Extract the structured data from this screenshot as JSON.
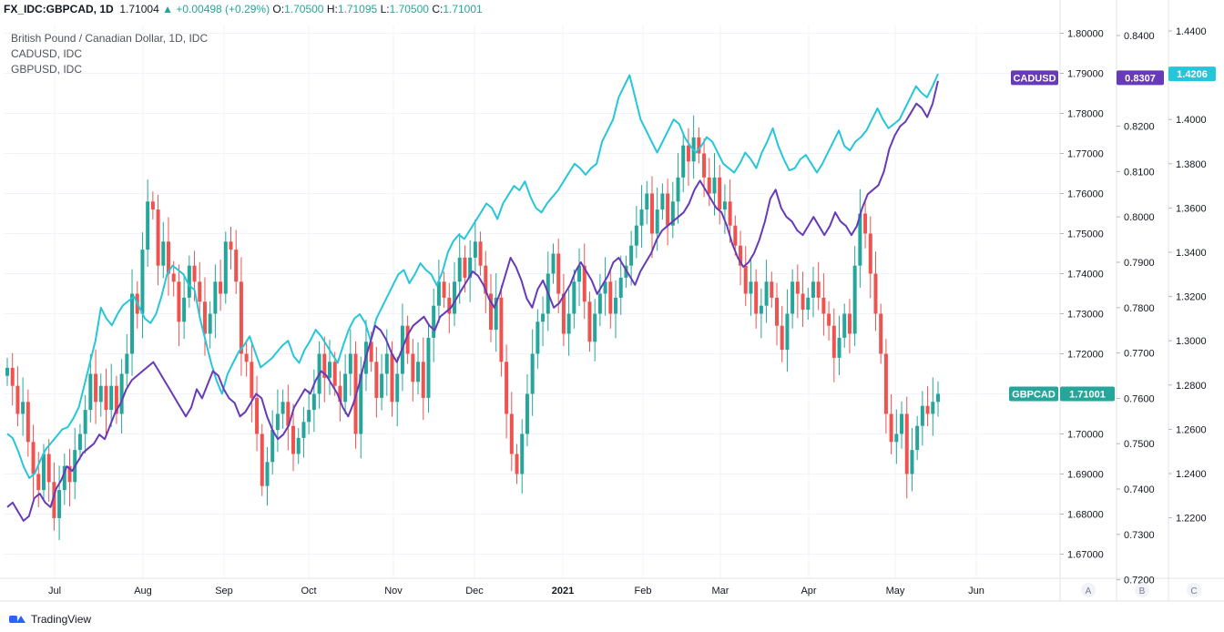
{
  "header": {
    "symbol": "FX_IDC:GBPCAD, 1D",
    "last": "1.71004",
    "change": "+0.00498 (+0.29%)",
    "o_label": "O:",
    "o_value": "1.70500",
    "h_label": "H:",
    "h_value": "1.71095",
    "l_label": "L:",
    "l_value": "1.70500",
    "c_label": "C:",
    "c_value": "1.71001"
  },
  "legend": [
    "British Pound / Canadian Dollar, 1D, IDC",
    "CADUSD, IDC",
    "GBPUSD, IDC"
  ],
  "footer": {
    "brand": "TradingView"
  },
  "colors": {
    "up": "#26a69a",
    "down": "#ef5350",
    "cadusd": "#673ab7",
    "gbpusd": "#26c6da",
    "grid": "#f0f3fa",
    "axis_text": "#131722",
    "border": "#e0e3eb",
    "gbpcad_badge": "#26a69a"
  },
  "chart_data": {
    "type": "candlestick",
    "x_ticks": [
      "Jul",
      "Aug",
      "Sep",
      "Oct",
      "Nov",
      "Dec",
      "2021",
      "Feb",
      "Mar",
      "Apr",
      "May",
      "Jun"
    ],
    "scales": [
      {
        "id": "A",
        "series": "GBPCAD",
        "ticks": [
          "1.80000",
          "1.79000",
          "1.78000",
          "1.77000",
          "1.76000",
          "1.75000",
          "1.74000",
          "1.73000",
          "1.72000",
          "1.71000",
          "1.70000",
          "1.69000",
          "1.68000",
          "1.67000"
        ],
        "last_label": "GBPCAD",
        "last_value": "1.71001",
        "last": 1.71001
      },
      {
        "id": "B",
        "series": "CADUSD",
        "ticks": [
          "0.8400",
          "0.8300",
          "0.8200",
          "0.8100",
          "0.8000",
          "0.7900",
          "0.7800",
          "0.7700",
          "0.7600",
          "0.7500",
          "0.7400",
          "0.7300",
          "0.7200"
        ],
        "last_label": "CADUSD",
        "last_value": "0.8307",
        "last": 0.8307
      },
      {
        "id": "C",
        "series": "GBPUSD",
        "ticks": [
          "1.4400",
          "1.4200",
          "1.4000",
          "1.3800",
          "1.3600",
          "1.3400",
          "1.3200",
          "1.3000",
          "1.2800",
          "1.2600",
          "1.2400",
          "1.2200"
        ],
        "last_value": "1.4206",
        "last": 1.4206
      }
    ],
    "series": [
      {
        "name": "GBPCAD",
        "close": [
          1.7165,
          1.712,
          1.705,
          1.708,
          1.698,
          1.69,
          1.686,
          1.695,
          1.688,
          1.679,
          1.686,
          1.692,
          1.688,
          1.696,
          1.7,
          1.706,
          1.715,
          1.708,
          1.712,
          1.706,
          1.712,
          1.705,
          1.715,
          1.72,
          1.735,
          1.73,
          1.746,
          1.758,
          1.756,
          1.742,
          1.748,
          1.74,
          1.738,
          1.728,
          1.734,
          1.742,
          1.738,
          1.733,
          1.725,
          1.73,
          1.738,
          1.735,
          1.748,
          1.746,
          1.738,
          1.72,
          1.718,
          1.709,
          1.7,
          1.687,
          1.693,
          1.701,
          1.705,
          1.708,
          1.702,
          1.695,
          1.699,
          1.703,
          1.706,
          1.71,
          1.72,
          1.714,
          1.718,
          1.712,
          1.708,
          1.715,
          1.72,
          1.7,
          1.715,
          1.723,
          1.718,
          1.709,
          1.715,
          1.72,
          1.708,
          1.715,
          1.727,
          1.72,
          1.713,
          1.718,
          1.709,
          1.724,
          1.732,
          1.738,
          1.734,
          1.73,
          1.738,
          1.744,
          1.739,
          1.744,
          1.748,
          1.742,
          1.735,
          1.726,
          1.734,
          1.718,
          1.705,
          1.695,
          1.69,
          1.7,
          1.71,
          1.72,
          1.728,
          1.73,
          1.74,
          1.745,
          1.735,
          1.725,
          1.73,
          1.738,
          1.742,
          1.733,
          1.723,
          1.73,
          1.735,
          1.738,
          1.73,
          1.734,
          1.739,
          1.742,
          1.747,
          1.752,
          1.756,
          1.76,
          1.75,
          1.756,
          1.76,
          1.752,
          1.758,
          1.764,
          1.772,
          1.768,
          1.774,
          1.77,
          1.764,
          1.76,
          1.764,
          1.756,
          1.758,
          1.752,
          1.747,
          1.742,
          1.735,
          1.738,
          1.73,
          1.732,
          1.738,
          1.734,
          1.727,
          1.721,
          1.73,
          1.738,
          1.735,
          1.731,
          1.734,
          1.738,
          1.734,
          1.73,
          1.727,
          1.719,
          1.724,
          1.73,
          1.725,
          1.742,
          1.755,
          1.75,
          1.74,
          1.73,
          1.72,
          1.705,
          1.698,
          1.7,
          1.705,
          1.69,
          1.696,
          1.702,
          1.707,
          1.705,
          1.708,
          1.71
        ],
        "ohlc_note": "daily candles, Jun 2020 – May 2021"
      },
      {
        "name": "CADUSD",
        "close": [
          0.736,
          0.737,
          0.735,
          0.733,
          0.734,
          0.738,
          0.739,
          0.737,
          0.736,
          0.74,
          0.742,
          0.745,
          0.744,
          0.746,
          0.748,
          0.749,
          0.75,
          0.752,
          0.751,
          0.754,
          0.757,
          0.759,
          0.762,
          0.764,
          0.765,
          0.766,
          0.767,
          0.768,
          0.766,
          0.764,
          0.762,
          0.76,
          0.758,
          0.756,
          0.758,
          0.762,
          0.76,
          0.763,
          0.766,
          0.765,
          0.762,
          0.76,
          0.759,
          0.756,
          0.757,
          0.759,
          0.761,
          0.76,
          0.756,
          0.753,
          0.751,
          0.752,
          0.754,
          0.758,
          0.76,
          0.762,
          0.761,
          0.764,
          0.766,
          0.765,
          0.763,
          0.761,
          0.758,
          0.756,
          0.759,
          0.763,
          0.768,
          0.772,
          0.776,
          0.775,
          0.773,
          0.77,
          0.768,
          0.771,
          0.774,
          0.776,
          0.777,
          0.778,
          0.776,
          0.775,
          0.778,
          0.779,
          0.78,
          0.782,
          0.784,
          0.786,
          0.788,
          0.787,
          0.785,
          0.782,
          0.78,
          0.783,
          0.787,
          0.791,
          0.789,
          0.786,
          0.782,
          0.78,
          0.784,
          0.786,
          0.783,
          0.78,
          0.781,
          0.783,
          0.785,
          0.788,
          0.79,
          0.788,
          0.786,
          0.783,
          0.785,
          0.787,
          0.79,
          0.791,
          0.789,
          0.787,
          0.785,
          0.788,
          0.79,
          0.792,
          0.795,
          0.797,
          0.798,
          0.799,
          0.8,
          0.801,
          0.803,
          0.806,
          0.808,
          0.806,
          0.804,
          0.802,
          0.801,
          0.798,
          0.794,
          0.791,
          0.789,
          0.79,
          0.792,
          0.795,
          0.799,
          0.804,
          0.806,
          0.802,
          0.8,
          0.799,
          0.797,
          0.796,
          0.798,
          0.8,
          0.798,
          0.796,
          0.798,
          0.801,
          0.799,
          0.798,
          0.796,
          0.798,
          0.802,
          0.805,
          0.806,
          0.807,
          0.81,
          0.815,
          0.818,
          0.82,
          0.821,
          0.823,
          0.825,
          0.824,
          0.822,
          0.825,
          0.83
        ]
      },
      {
        "name": "GBPUSD",
        "close": [
          1.258,
          1.256,
          1.25,
          1.243,
          1.238,
          1.24,
          1.246,
          1.251,
          1.254,
          1.257,
          1.26,
          1.261,
          1.265,
          1.27,
          1.28,
          1.29,
          1.3,
          1.315,
          1.31,
          1.307,
          1.312,
          1.316,
          1.318,
          1.32,
          1.315,
          1.31,
          1.308,
          1.312,
          1.32,
          1.33,
          1.334,
          1.332,
          1.33,
          1.325,
          1.323,
          1.31,
          1.3,
          1.29,
          1.282,
          1.276,
          1.285,
          1.29,
          1.295,
          1.298,
          1.302,
          1.295,
          1.288,
          1.29,
          1.292,
          1.295,
          1.298,
          1.3,
          1.293,
          1.29,
          1.296,
          1.3,
          1.305,
          1.302,
          1.298,
          1.294,
          1.29,
          1.298,
          1.305,
          1.31,
          1.312,
          1.308,
          1.3,
          1.31,
          1.315,
          1.32,
          1.325,
          1.33,
          1.332,
          1.326,
          1.33,
          1.335,
          1.332,
          1.33,
          1.325,
          1.331,
          1.34,
          1.345,
          1.348,
          1.346,
          1.35,
          1.354,
          1.358,
          1.362,
          1.36,
          1.355,
          1.362,
          1.366,
          1.37,
          1.368,
          1.372,
          1.365,
          1.36,
          1.358,
          1.362,
          1.365,
          1.368,
          1.372,
          1.376,
          1.38,
          1.378,
          1.375,
          1.378,
          1.38,
          1.39,
          1.395,
          1.4,
          1.41,
          1.415,
          1.42,
          1.41,
          1.4,
          1.395,
          1.39,
          1.385,
          1.39,
          1.395,
          1.4,
          1.398,
          1.392,
          1.388,
          1.385,
          1.388,
          1.392,
          1.39,
          1.385,
          1.38,
          1.378,
          1.376,
          1.38,
          1.385,
          1.382,
          1.378,
          1.385,
          1.39,
          1.396,
          1.388,
          1.382,
          1.377,
          1.378,
          1.382,
          1.384,
          1.38,
          1.376,
          1.38,
          1.385,
          1.39,
          1.395,
          1.388,
          1.386,
          1.39,
          1.392,
          1.395,
          1.4,
          1.405,
          1.4,
          1.396,
          1.398,
          1.4,
          1.405,
          1.41,
          1.415,
          1.412,
          1.41,
          1.415,
          1.4206
        ]
      }
    ],
    "grid": true,
    "legend_position": "top-left"
  }
}
